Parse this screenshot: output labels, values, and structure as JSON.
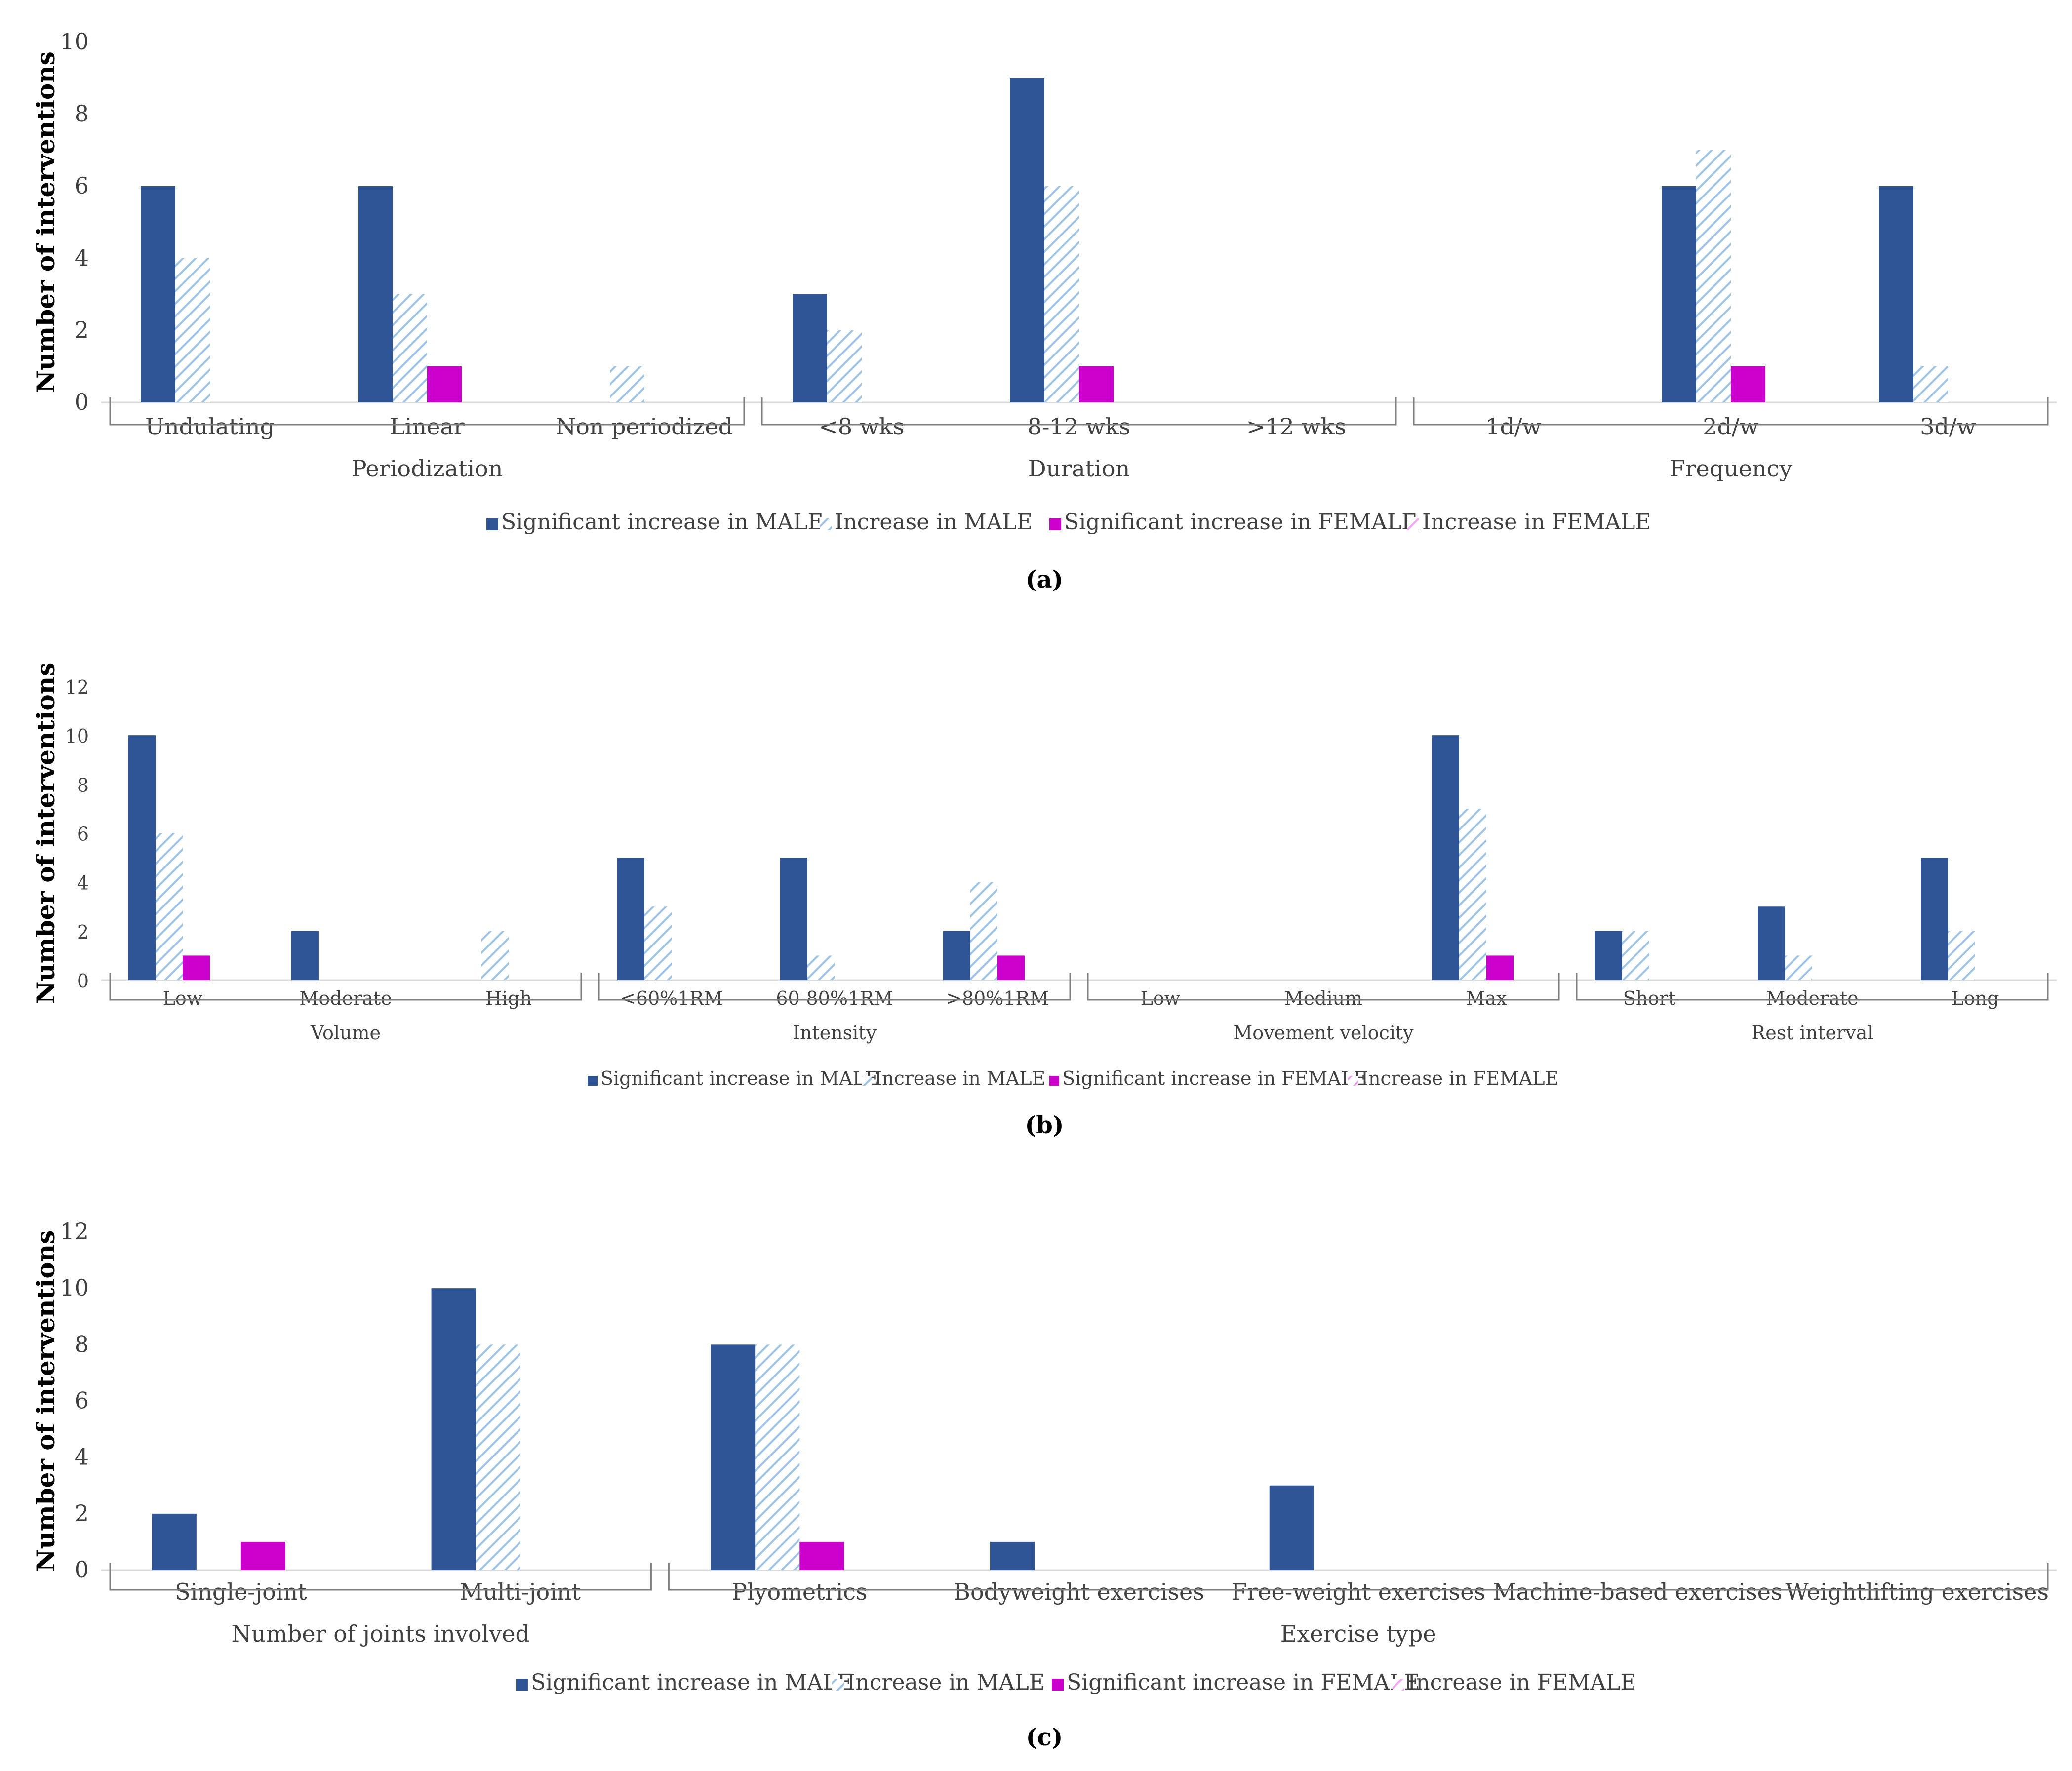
{
  "legend": [
    {
      "name": "Significant increase in MALE",
      "color": "#2F5597",
      "pattern": "solid"
    },
    {
      "name": "Increase in MALE",
      "color": "#9DC3E6",
      "pattern": "hatch"
    },
    {
      "name": "Significant increase in FEMALE",
      "color": "#CC00CC",
      "pattern": "solid"
    },
    {
      "name": "Increase in FEMALE",
      "color": "#F4A6F4",
      "pattern": "hatch"
    }
  ],
  "chart_data": [
    {
      "type": "bar",
      "panel_label": "(a)",
      "ylabel": "Number of interventions",
      "ylim": [
        0,
        10
      ],
      "yticks": [
        0,
        2,
        4,
        6,
        8,
        10
      ],
      "groups": [
        {
          "label": "Periodization",
          "categories": [
            "Undulating",
            "Linear",
            "Non periodized"
          ]
        },
        {
          "label": "Duration",
          "categories": [
            "<8 wks",
            "8-12 wks",
            ">12 wks"
          ]
        },
        {
          "label": "Frequency",
          "categories": [
            "1d/w",
            "2d/w",
            "3d/w"
          ]
        }
      ],
      "categories": [
        "Undulating",
        "Linear",
        "Non periodized",
        "<8 wks",
        "8-12 wks",
        ">12 wks",
        "1d/w",
        "2d/w",
        "3d/w"
      ],
      "series": [
        {
          "name": "Significant increase in MALE",
          "values": [
            6,
            6,
            0,
            3,
            9,
            0,
            0,
            6,
            6
          ]
        },
        {
          "name": "Increase in MALE",
          "values": [
            4,
            3,
            1,
            2,
            6,
            0,
            0,
            7,
            1
          ]
        },
        {
          "name": "Significant increase in FEMALE",
          "values": [
            0,
            1,
            0,
            0,
            1,
            0,
            0,
            1,
            0
          ]
        },
        {
          "name": "Increase in FEMALE",
          "values": [
            0,
            0,
            0,
            0,
            0,
            0,
            0,
            0,
            0
          ]
        }
      ]
    },
    {
      "type": "bar",
      "panel_label": "(b)",
      "ylabel": "Number of interventions",
      "ylim": [
        0,
        12
      ],
      "yticks": [
        0,
        2,
        4,
        6,
        8,
        10,
        12
      ],
      "groups": [
        {
          "label": "Volume",
          "categories": [
            "Low",
            "Moderate",
            "High"
          ]
        },
        {
          "label": "Intensity",
          "categories": [
            "<60%1RM",
            "60-80%1RM",
            ">80%1RM"
          ]
        },
        {
          "label": "Movement velocity",
          "categories": [
            "Low",
            "Medium",
            "Max"
          ]
        },
        {
          "label": "Rest interval",
          "categories": [
            "Short",
            "Moderate",
            "Long"
          ]
        }
      ],
      "categories": [
        "Low",
        "Moderate",
        "High",
        "<60%1RM",
        "60-80%1RM",
        ">80%1RM",
        "Low",
        "Medium",
        "Max",
        "Short",
        "Moderate",
        "Long"
      ],
      "series": [
        {
          "name": "Significant increase in MALE",
          "values": [
            10,
            2,
            0,
            5,
            5,
            2,
            0,
            0,
            10,
            2,
            3,
            5
          ]
        },
        {
          "name": "Increase in MALE",
          "values": [
            6,
            0,
            2,
            3,
            1,
            4,
            0,
            0,
            7,
            2,
            1,
            2
          ]
        },
        {
          "name": "Significant increase in FEMALE",
          "values": [
            1,
            0,
            0,
            0,
            0,
            1,
            0,
            0,
            1,
            0,
            0,
            0
          ]
        },
        {
          "name": "Increase in FEMALE",
          "values": [
            0,
            0,
            0,
            0,
            0,
            0,
            0,
            0,
            0,
            0,
            0,
            0
          ]
        }
      ]
    },
    {
      "type": "bar",
      "panel_label": "(c)",
      "ylabel": "Number of interventions",
      "ylim": [
        0,
        12
      ],
      "yticks": [
        0,
        2,
        4,
        6,
        8,
        10,
        12
      ],
      "groups": [
        {
          "label": "Number of joints involved",
          "categories": [
            "Single-joint",
            "Multi-joint"
          ]
        },
        {
          "label": "Exercise type",
          "categories": [
            "Plyometrics",
            "Bodyweight exercises",
            "Free-weight exercises",
            "Machine-based exercises",
            "Weightlifting exercises"
          ]
        }
      ],
      "categories": [
        "Single-joint",
        "Multi-joint",
        "Plyometrics",
        "Bodyweight exercises",
        "Free-weight exercises",
        "Machine-based exercises",
        "Weightlifting exercises"
      ],
      "series": [
        {
          "name": "Significant increase in MALE",
          "values": [
            2,
            10,
            8,
            1,
            3,
            0,
            0
          ]
        },
        {
          "name": "Increase in MALE",
          "values": [
            0,
            8,
            8,
            0,
            0,
            0,
            0
          ]
        },
        {
          "name": "Significant increase in FEMALE",
          "values": [
            1,
            0,
            1,
            0,
            0,
            0,
            0
          ]
        },
        {
          "name": "Increase in FEMALE",
          "values": [
            0,
            0,
            0,
            0,
            0,
            0,
            0
          ]
        }
      ]
    }
  ]
}
